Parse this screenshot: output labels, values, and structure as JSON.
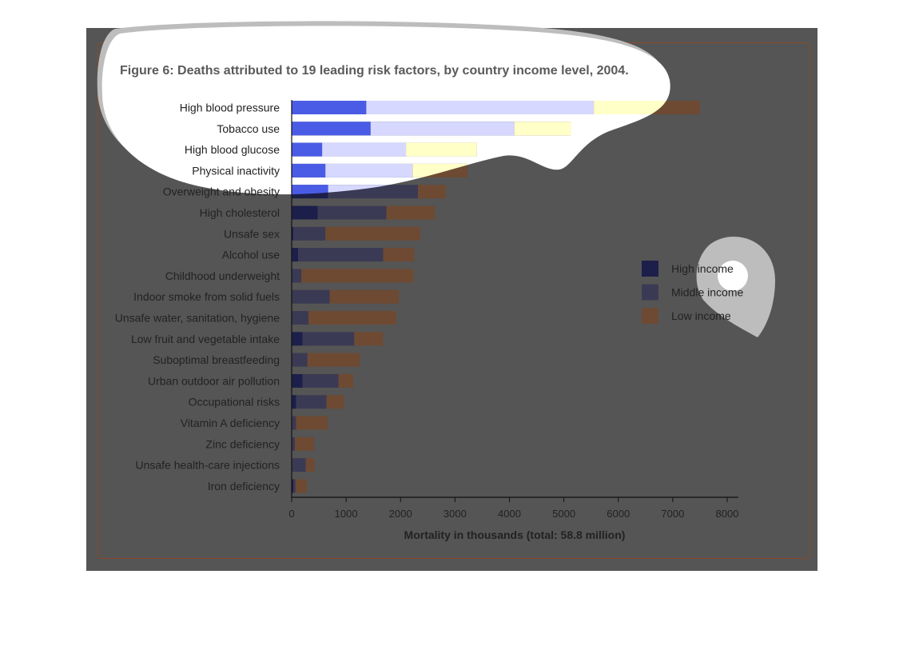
{
  "chart_data": {
    "type": "bar",
    "orientation": "horizontal",
    "stacked": true,
    "title": "Figure 6: Deaths attributed to 19 leading risk factors, by country income level, 2004.",
    "xlabel": "Mortality in thousands (total: 58.8 million)",
    "ylabel": "",
    "xlim": [
      0,
      8000
    ],
    "xticks": [
      "0",
      "1000",
      "2000",
      "3000",
      "4000",
      "5000",
      "6000",
      "7000",
      "8000"
    ],
    "grid": false,
    "legend_position": "right",
    "categories": [
      "High blood pressure",
      "Tobacco use",
      "High blood glucose",
      "Physical inactivity",
      "Overweight and obesity",
      "High cholesterol",
      "Unsafe sex",
      "Alcohol use",
      "Childhood underweight",
      "Indoor smoke from solid fuels",
      "Unsafe water, sanitation, hygiene",
      "Low fruit and vegetable intake",
      "Suboptimal breastfeeding",
      "Urban outdoor air pollution",
      "Occupational risks",
      "Vitamin A deficiency",
      "Zinc deficiency",
      "Unsafe health-care injections",
      "Iron deficiency"
    ],
    "series": [
      {
        "name": "High income",
        "color": "#4a5ce6",
        "dim_color": "#1c1f4a",
        "values": [
          1370,
          1450,
          560,
          620,
          670,
          480,
          30,
          120,
          10,
          10,
          10,
          200,
          10,
          200,
          80,
          10,
          10,
          10,
          30
        ]
      },
      {
        "name": "Middle income",
        "color": "#d6d8ff",
        "dim_color": "#3b3a54",
        "values": [
          4180,
          2640,
          1540,
          1600,
          1650,
          1260,
          590,
          1560,
          170,
          690,
          300,
          950,
          280,
          660,
          560,
          70,
          50,
          250,
          40
        ]
      },
      {
        "name": "Low income",
        "color": "#ffffc8",
        "warm_color": "#c48c6a",
        "dim_color": "#6e4a33",
        "values": [
          1950,
          1040,
          1300,
          1010,
          510,
          890,
          1740,
          570,
          2060,
          1270,
          1610,
          530,
          960,
          270,
          320,
          580,
          350,
          160,
          210
        ]
      }
    ]
  }
}
